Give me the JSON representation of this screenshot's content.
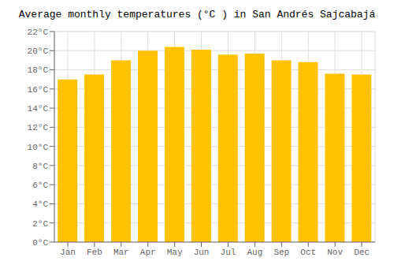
{
  "chart_data": {
    "type": "bar",
    "title": "Average monthly temperatures (°C ) in San Andrés Sajcabajá",
    "categories": [
      "Jan",
      "Feb",
      "Mar",
      "Apr",
      "May",
      "Jun",
      "Jul",
      "Aug",
      "Sep",
      "Oct",
      "Nov",
      "Dec"
    ],
    "values": [
      17.0,
      17.5,
      19.0,
      20.0,
      20.4,
      20.1,
      19.6,
      19.7,
      19.0,
      18.8,
      17.6,
      17.5
    ],
    "color": "#FFC200",
    "ylim": [
      0,
      22
    ],
    "yticks": [
      {
        "value": 0,
        "label": "0°C"
      },
      {
        "value": 2,
        "label": "2°C"
      },
      {
        "value": 4,
        "label": "4°C"
      },
      {
        "value": 6,
        "label": "6°C"
      },
      {
        "value": 8,
        "label": "8°C"
      },
      {
        "value": 10,
        "label": "10°C"
      },
      {
        "value": 12,
        "label": "12°C"
      },
      {
        "value": 14,
        "label": "14°C"
      },
      {
        "value": 16,
        "label": "16°C"
      },
      {
        "value": 18,
        "label": "18°C"
      },
      {
        "value": 20,
        "label": "20°C"
      },
      {
        "value": 22,
        "label": "22°C"
      }
    ],
    "grid": true
  }
}
